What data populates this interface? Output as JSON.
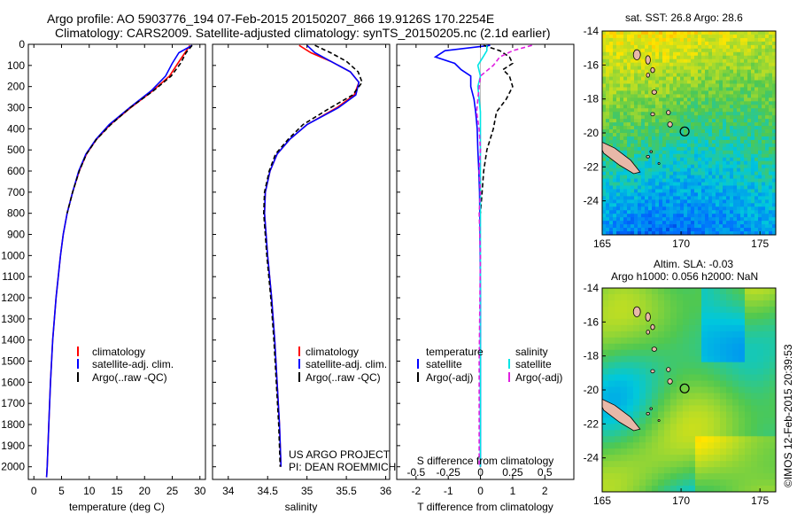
{
  "title_line1": "Argo profile: AO 5903776_194 07-Feb-2015 20150207_866 19.9126S 170.2254E",
  "title_line2": "Climatology: CARS2009. Satellite-adjusted climatology: synTS_20150205.nc (2.1d earlier)",
  "credit_line1": "US ARGO PROJECT",
  "credit_line2": "PI: DEAN ROEMMICH",
  "side_stamp": "©IMOS 12-Feb-2015 20:39:53",
  "colors": {
    "climatology": "#ff0000",
    "satellite": "#0000ff",
    "argo": "#000000",
    "sal_sat": "#00e5e5",
    "sal_argo": "#e020e0"
  },
  "chart_data": [
    {
      "type": "line",
      "name": "temperature",
      "xlabel": "temperature (deg C)",
      "ylabel": "",
      "xlim": [
        -1,
        31
      ],
      "ylim": [
        2060,
        0
      ],
      "xticks": [
        0,
        5,
        10,
        15,
        20,
        25,
        30
      ],
      "xtick_labels": [
        "0",
        "5",
        "10",
        "15",
        "20",
        "25",
        "30"
      ],
      "yticks": [
        0,
        100,
        200,
        300,
        400,
        500,
        600,
        700,
        800,
        900,
        1000,
        1100,
        1200,
        1300,
        1400,
        1500,
        1600,
        1700,
        1800,
        1900,
        2000
      ],
      "ytick_labels": [
        "0",
        "100",
        "200",
        "300",
        "400",
        "500",
        "600",
        "700",
        "800",
        "900",
        "1000",
        "1100",
        "1200",
        "1300",
        "1400",
        "1500",
        "1600",
        "1700",
        "1800",
        "1900",
        "2000"
      ],
      "legend": [
        "climatology",
        "satellite-adj. clim.",
        "Argo(..raw -QC)"
      ],
      "series": [
        {
          "name": "climatology",
          "depth": [
            5,
            40,
            90,
            150,
            220,
            300,
            380,
            450,
            520,
            600,
            700,
            800,
            900,
            1000,
            1200,
            1400,
            1600,
            1800,
            2000,
            2050
          ],
          "values": [
            28.2,
            27.3,
            26,
            24.5,
            21.5,
            17.5,
            13.8,
            11.3,
            9.5,
            8.2,
            7.0,
            6.0,
            5.3,
            4.8,
            4.0,
            3.4,
            3.0,
            2.7,
            2.4,
            2.3
          ]
        },
        {
          "name": "satellite-adj. clim.",
          "depth": [
            5,
            40,
            90,
            150,
            220,
            300,
            380,
            450,
            520,
            600,
            700,
            800,
            900,
            1000,
            1200,
            1400,
            1600,
            1800,
            2000,
            2050
          ],
          "values": [
            28.6,
            26.2,
            25.0,
            23.8,
            21.2,
            17.3,
            13.6,
            11.2,
            9.4,
            8.1,
            7.0,
            6.0,
            5.3,
            4.8,
            4.0,
            3.4,
            3.0,
            2.7,
            2.4,
            2.3
          ]
        },
        {
          "name": "Argo(..raw -QC)",
          "depth": [
            5,
            40,
            90,
            150,
            220,
            300,
            380,
            450,
            520,
            600,
            700,
            800
          ],
          "values": [
            28.6,
            27.5,
            26.5,
            24.8,
            21.6,
            17.4,
            13.9,
            11.3,
            9.5,
            8.2,
            7.0,
            6.0
          ]
        }
      ]
    },
    {
      "type": "line",
      "name": "salinity",
      "xlabel": "salinity",
      "xlim": [
        33.8,
        36.05
      ],
      "ylim": [
        2060,
        0
      ],
      "xticks": [
        34,
        34.5,
        35,
        35.5,
        36
      ],
      "xtick_labels": [
        "34",
        "34.5",
        "35",
        "35.5",
        "36"
      ],
      "legend": [
        "climatology",
        "satellite-adj. clim.",
        "Argo(..raw -QC)"
      ],
      "series": [
        {
          "name": "climatology",
          "depth": [
            5,
            40,
            80,
            130,
            180,
            240,
            300,
            380,
            450,
            520,
            600,
            700,
            800,
            1000,
            1200,
            1400,
            1600,
            1800,
            2000
          ],
          "values": [
            34.9,
            35.05,
            35.3,
            35.55,
            35.66,
            35.6,
            35.38,
            35.0,
            34.78,
            34.62,
            34.53,
            34.47,
            34.46,
            34.5,
            34.55,
            34.59,
            34.62,
            34.65,
            34.67
          ]
        },
        {
          "name": "satellite-adj. clim.",
          "depth": [
            5,
            40,
            80,
            130,
            180,
            240,
            300,
            380,
            450,
            520,
            600,
            700,
            800,
            1000,
            1200,
            1400,
            1600,
            1800,
            2000
          ],
          "values": [
            35.0,
            35.1,
            35.3,
            35.55,
            35.66,
            35.62,
            35.4,
            35.0,
            34.78,
            34.62,
            34.53,
            34.47,
            34.46,
            34.5,
            34.55,
            34.59,
            34.62,
            34.65,
            34.67
          ]
        },
        {
          "name": "Argo(..raw -QC)",
          "depth": [
            5,
            40,
            80,
            130,
            180,
            240,
            300,
            380,
            450,
            520,
            600,
            700,
            800,
            1000,
            1200,
            1400,
            1600,
            1800,
            2000
          ],
          "values": [
            35.1,
            35.3,
            35.5,
            35.65,
            35.7,
            35.58,
            35.3,
            34.95,
            34.76,
            34.6,
            34.52,
            34.46,
            34.45,
            34.49,
            34.54,
            34.58,
            34.61,
            34.64,
            34.66
          ]
        }
      ]
    },
    {
      "type": "line",
      "name": "difference",
      "xlabel": "T difference from climatology",
      "xlabel_top": "S difference from climatology",
      "xlim": [
        -2.6,
        2.9
      ],
      "ylim": [
        2060,
        0
      ],
      "xticks": [
        -2,
        -1,
        0,
        1,
        2
      ],
      "xtick_labels": [
        "-2",
        "-1",
        "0",
        "1",
        "2"
      ],
      "s_ticks": [
        -0.5,
        -0.25,
        0,
        0.25,
        0.5
      ],
      "s_tick_labels": [
        "-0.5",
        "-0.25",
        "0",
        "0.25",
        "0.5"
      ],
      "legend_titles": [
        "temperature",
        "salinity"
      ],
      "legend": [
        "satellite",
        "Argo(-adj)",
        "satellite",
        "Argo(-adj)"
      ],
      "series": [
        {
          "name": "T satellite",
          "depth": [
            5,
            30,
            60,
            90,
            120,
            150,
            200,
            260,
            320,
            400,
            500,
            600,
            700,
            800,
            1000,
            1200,
            1500,
            1800,
            2000
          ],
          "values": [
            0.3,
            -1.1,
            -1.4,
            -0.8,
            -0.6,
            -0.3,
            -0.3,
            -0.2,
            -0.15,
            -0.1,
            -0.08,
            -0.05,
            -0.03,
            -0.02,
            -0.01,
            0,
            0,
            0,
            0
          ]
        },
        {
          "name": "T Argo(-adj)",
          "depth": [
            5,
            30,
            60,
            90,
            120,
            150,
            200,
            260,
            320,
            400,
            500,
            600,
            700,
            800
          ],
          "values": [
            0.1,
            0.6,
            0.9,
            1.0,
            0.7,
            0.9,
            1.0,
            0.8,
            0.5,
            0.4,
            0.2,
            0.1,
            0.05,
            0.0
          ]
        },
        {
          "name": "S satellite",
          "depth": [
            5,
            30,
            60,
            100,
            150,
            200,
            260,
            320,
            400,
            500,
            600,
            700,
            800,
            1000,
            1500,
            2000
          ],
          "values": [
            0.05,
            0.05,
            0.02,
            -0.02,
            0.0,
            -0.02,
            -0.01,
            0.0,
            0.0,
            0.0,
            0.0,
            0.0,
            0.0,
            0.0,
            0.0,
            0.0
          ]
        },
        {
          "name": "S Argo(-adj)",
          "depth": [
            5,
            30,
            60,
            100,
            150,
            200,
            260,
            320,
            400,
            500,
            600,
            700,
            800,
            1000,
            1500,
            2000
          ],
          "values": [
            0.4,
            0.25,
            0.15,
            0.1,
            0.0,
            -0.01,
            -0.02,
            -0.03,
            -0.01,
            0.0,
            -0.01,
            0.0,
            -0.01,
            0.0,
            -0.01,
            -0.01
          ]
        }
      ]
    },
    {
      "type": "heatmap",
      "name": "sat-sst-map",
      "title": "sat. SST: 26.8  Argo: 28.6",
      "xlim": [
        165,
        176
      ],
      "ylim": [
        -26,
        -14
      ],
      "xticks": [
        165,
        170,
        175
      ],
      "xtick_labels": [
        "165",
        "170",
        "175"
      ],
      "yticks": [
        -14,
        -16,
        -18,
        -20,
        -22,
        -24
      ],
      "ytick_labels": [
        "-14",
        "-16",
        "-18",
        "-20",
        "-22",
        "-24"
      ],
      "marker": {
        "lon": 170.2254,
        "lat": -19.9126
      }
    },
    {
      "type": "heatmap",
      "name": "sla-map",
      "title_line1": "Altim. SLA: -0.03",
      "title_line2": "Argo h1000: 0.056 h2000: NaN",
      "xlim": [
        165,
        176
      ],
      "ylim": [
        -26,
        -14
      ],
      "xticks": [
        165,
        170,
        175
      ],
      "xtick_labels": [
        "165",
        "170",
        "175"
      ],
      "yticks": [
        -14,
        -16,
        -18,
        -20,
        -22,
        -24
      ],
      "ytick_labels": [
        "-14",
        "-16",
        "-18",
        "-20",
        "-22",
        "-24"
      ],
      "marker": {
        "lon": 170.2254,
        "lat": -19.9126
      }
    }
  ]
}
